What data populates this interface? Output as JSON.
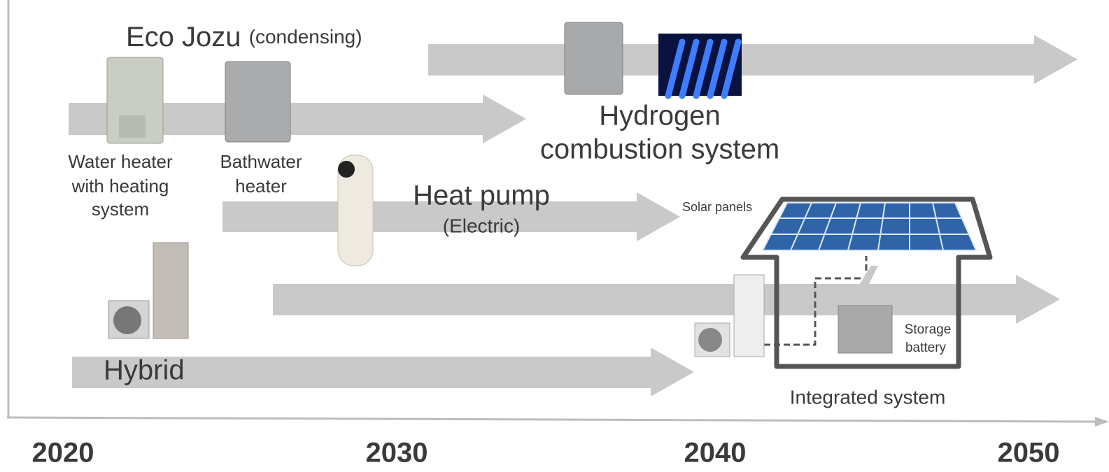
{
  "title": {
    "main": "Eco Jozu",
    "sub": "(condensing)"
  },
  "products": {
    "water_heater": [
      "Water heater",
      "with heating",
      "system"
    ],
    "bathwater_heater": [
      "Bathwater",
      "heater"
    ]
  },
  "hydrogen": [
    "Hydrogen",
    "combustion system"
  ],
  "heat_pump": {
    "main": "Heat pump",
    "sub": "(Electric)"
  },
  "integrated": {
    "solar": "Solar panels",
    "battery": [
      "Storage",
      "battery"
    ],
    "label": "Integrated system"
  },
  "hybrid": "Hybrid",
  "timeline": [
    "2020",
    "2030",
    "2040",
    "2050"
  ]
}
